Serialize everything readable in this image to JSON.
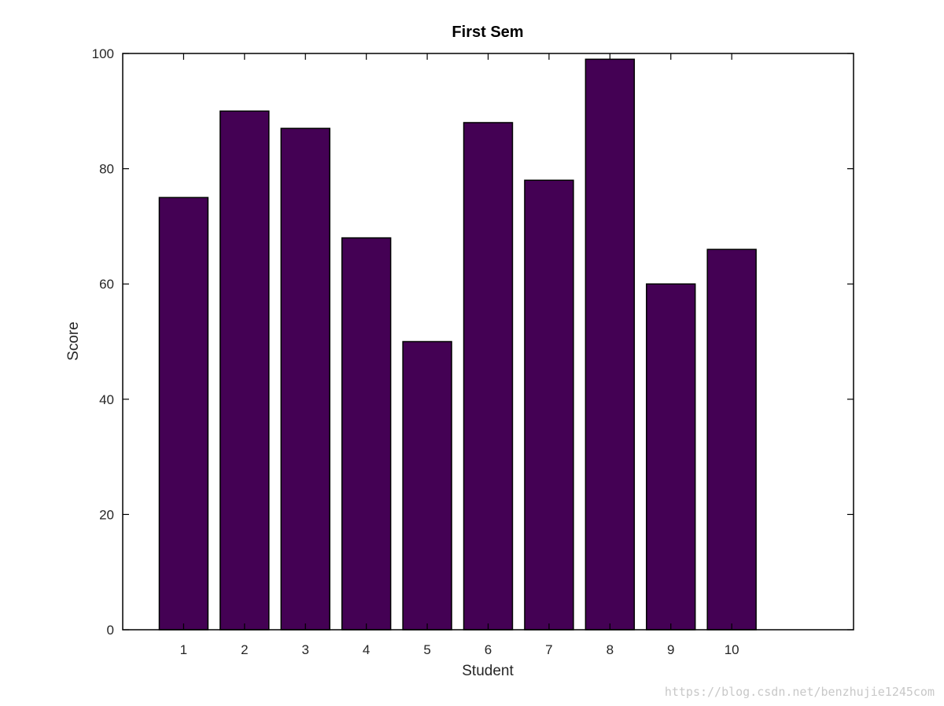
{
  "chart_data": {
    "type": "bar",
    "title": "First Sem",
    "xlabel": "Student",
    "ylabel": "Score",
    "categories": [
      "1",
      "2",
      "3",
      "4",
      "5",
      "6",
      "7",
      "8",
      "9",
      "10"
    ],
    "values": [
      75,
      90,
      87,
      68,
      50,
      88,
      78,
      99,
      60,
      66
    ],
    "xlim": [
      0,
      12
    ],
    "ylim": [
      0,
      100
    ],
    "yticks": [
      "0",
      "20",
      "40",
      "60",
      "80",
      "100"
    ],
    "grid": false,
    "bar_color": "#440154",
    "edge_color": "#000000"
  },
  "watermark": "https://blog.csdn.net/benzhujie1245com"
}
